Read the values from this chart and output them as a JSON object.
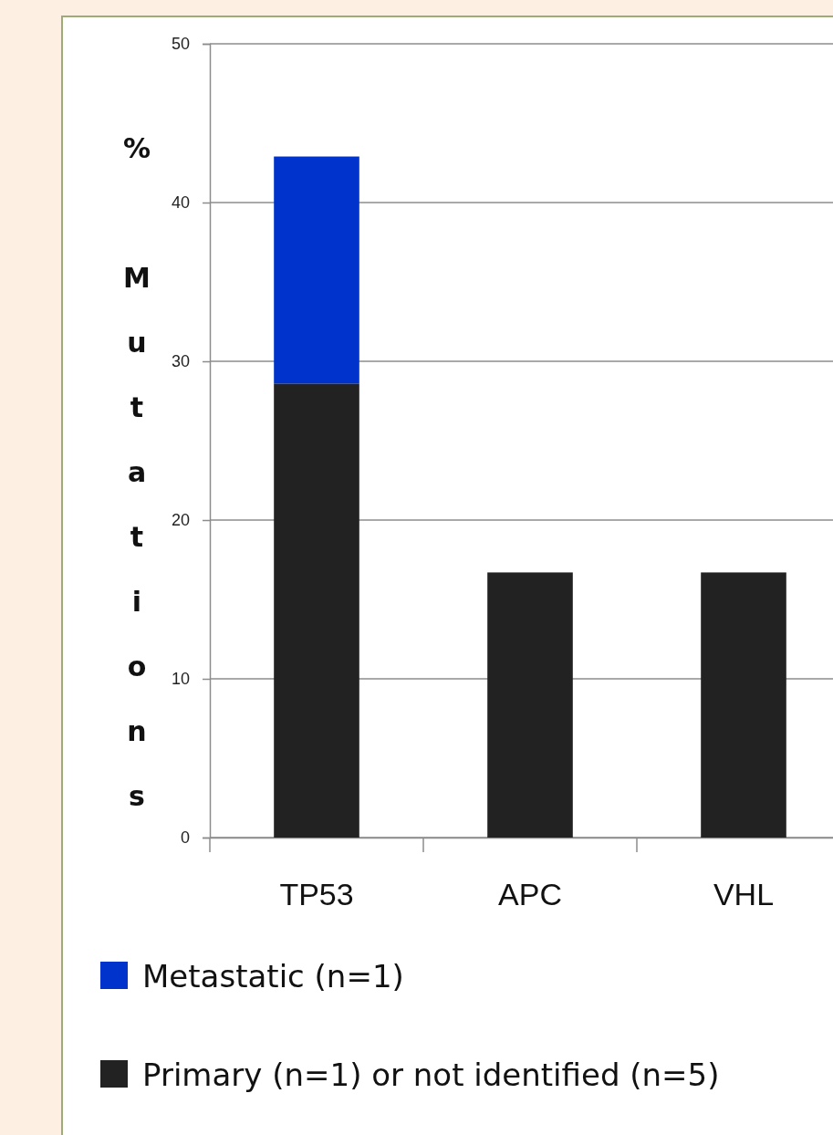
{
  "chart_data": {
    "type": "bar",
    "stacked": true,
    "ylabel": "% Mutations",
    "categories": [
      "TP53",
      "APC",
      "VHL"
    ],
    "series": [
      {
        "name": "Primary (n=1) or not identified (n=5)",
        "color": "#222222",
        "values": [
          28.6,
          16.7,
          16.7
        ]
      },
      {
        "name": "Metastatic (n=1)",
        "color": "#0033cc",
        "values": [
          14.3,
          0,
          0
        ]
      }
    ],
    "ylim": [
      0,
      50
    ],
    "yticks": [
      0,
      10,
      20,
      30,
      40,
      50
    ],
    "grid": "y",
    "legend": "bottom"
  }
}
